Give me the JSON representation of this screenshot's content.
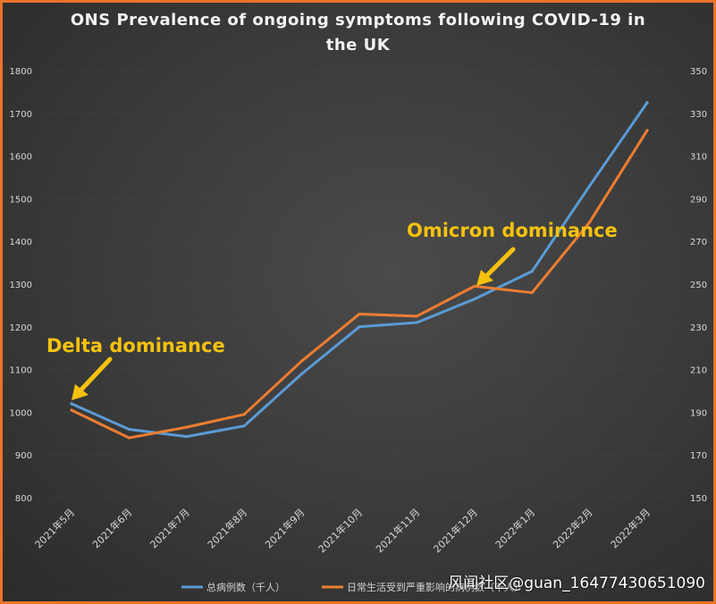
{
  "chart_data": {
    "type": "line",
    "title_line1": "ONS Prevalence of ongoing symptoms following COVID-19 in",
    "title_line2": "the UK",
    "categories": [
      "2021年5月",
      "2021年6月",
      "2021年7月",
      "2021年8月",
      "2021年9月",
      "2021年10月",
      "2021年11月",
      "2021年12月",
      "2022年1月",
      "2022年2月",
      "2022年3月"
    ],
    "left_axis": {
      "ylim": [
        800,
        1800
      ],
      "ticks": [
        800,
        900,
        1000,
        1100,
        1200,
        1300,
        1400,
        1500,
        1600,
        1700,
        1800
      ]
    },
    "right_axis": {
      "ylim": [
        150,
        350
      ],
      "ticks": [
        150,
        170,
        190,
        210,
        230,
        250,
        270,
        290,
        310,
        330,
        350
      ]
    },
    "series": [
      {
        "name": "总病例数（千人）",
        "axis": "left",
        "color": "#5B9BD5",
        "values": [
          1020,
          960,
          943,
          968,
          1090,
          1200,
          1210,
          1265,
          1330,
          1530,
          1725
        ]
      },
      {
        "name": "日常生活受到严重影响的病例数（千人）",
        "axis": "right",
        "color": "#ED7D31",
        "values": [
          191,
          178,
          183,
          189,
          214,
          236,
          235,
          249,
          246,
          279,
          322
        ]
      }
    ],
    "annotations": [
      {
        "text": "Delta dominance",
        "category_index": 0
      },
      {
        "text": "Omicron dominance",
        "category_index": 7
      }
    ],
    "legend_position": "bottom"
  },
  "watermark": "风闻社区@guan_16477430651090"
}
